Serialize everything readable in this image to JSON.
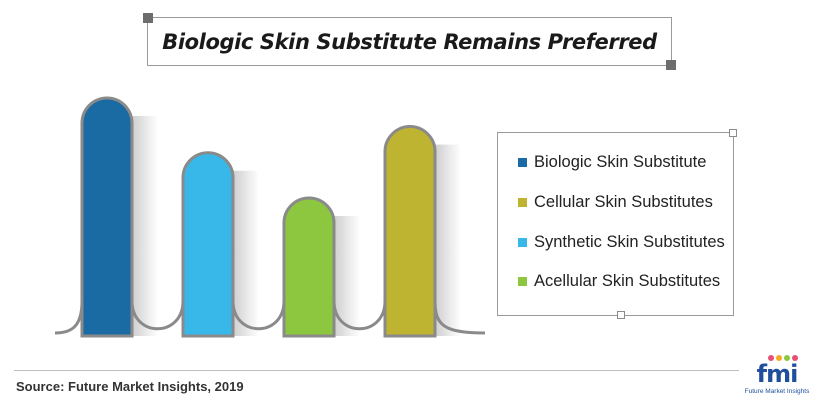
{
  "title": "Biologic Skin Substitute Remains Preferred",
  "source": "Source: Future Market Insights, 2019",
  "logo": {
    "mark": "fmi",
    "tagline": "Future Market Insights"
  },
  "chart_data": {
    "type": "bar",
    "title": "Biologic Skin Substitute Remains Preferred",
    "categories": [
      "Biologic Skin Substitute",
      "Synthetic Skin Substitutes",
      "Acellular Skin Substitutes",
      "Cellular Skin Substitutes"
    ],
    "values": [
      100,
      77,
      58,
      88
    ],
    "value_unit": "relative share (no axis printed; estimated from bar heights)",
    "colors": [
      "#1a6aa3",
      "#38b8e8",
      "#8dc63f",
      "#bfb431"
    ],
    "legend": {
      "placement": "right",
      "items": [
        {
          "label": "Biologic Skin Substitute",
          "color": "#1a6aa3"
        },
        {
          "label": "Cellular Skin Substitutes",
          "color": "#bfb431"
        },
        {
          "label": "Synthetic Skin Substitutes",
          "color": "#38b8e8"
        },
        {
          "label": "Acellular Skin Substitutes",
          "color": "#8dc63f"
        }
      ]
    },
    "grid": false
  }
}
